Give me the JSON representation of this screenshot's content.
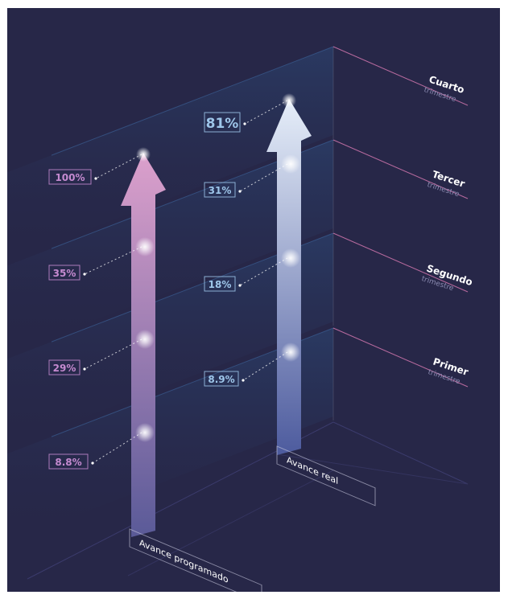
{
  "chart_data": {
    "type": "bar",
    "categories": [
      "Primer trimestre",
      "Segundo trimestre",
      "Tercer trimestre",
      "Cuarto trimestre"
    ],
    "quarters": [
      {
        "name": "Primer",
        "sub": "trimestre"
      },
      {
        "name": "Segundo",
        "sub": "trimestre"
      },
      {
        "name": "Tercer",
        "sub": "trimestre"
      },
      {
        "name": "Cuarto",
        "sub": "trimestre"
      }
    ],
    "series": [
      {
        "name": "Avance programado",
        "values": [
          8.8,
          29,
          35,
          100
        ],
        "labels": [
          "8.8%",
          "29%",
          "35%",
          "100%"
        ],
        "color": "#d89cc6"
      },
      {
        "name": "Avance real",
        "values": [
          8.9,
          18,
          31,
          81
        ],
        "labels": [
          "8.9%",
          "18%",
          "31%",
          "81%"
        ],
        "color": "#c5d6f3"
      }
    ],
    "colors": {
      "background": "#272748",
      "programado_label": "#c58ad0",
      "real_label": "#9ec6ea",
      "quarter_line": "#b76a9e"
    }
  }
}
